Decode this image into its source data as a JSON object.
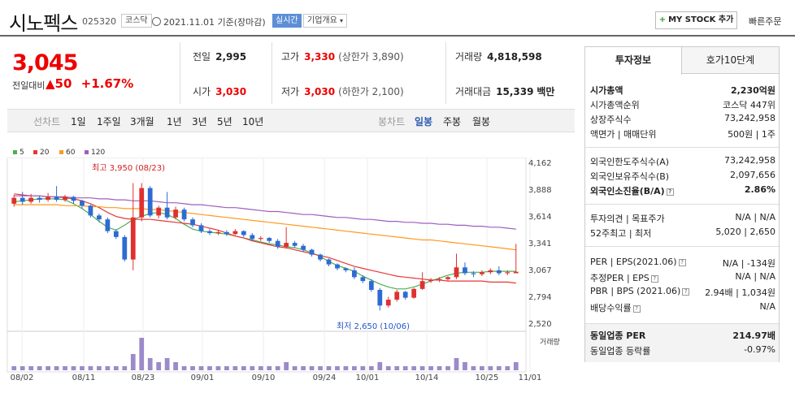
{
  "header": {
    "name": "시노펙스",
    "code": "025320",
    "market": "코스닥",
    "date_text": "2021.11.01 기준(장마감)",
    "realtime": "실시간",
    "company": "기업개요",
    "mystock": "MY STOCK 추가",
    "quick": "빠른주문"
  },
  "quote": {
    "price": "3,045",
    "change_label": "전일대비",
    "change": "▲50",
    "change_pct": "+1.67%"
  },
  "stats": {
    "prev_label": "전일",
    "prev": "2,995",
    "high_label": "고가",
    "high": "3,330",
    "upper_limit": "(상한가 3,890)",
    "volume_label": "거래량",
    "volume": "4,818,598",
    "open_label": "시가",
    "open": "3,030",
    "low_label": "저가",
    "low": "3,030",
    "lower_limit": "(하한가 2,100)",
    "amount_label": "거래대금",
    "amount": "15,339",
    "amount_unit": "백만"
  },
  "toolbar": {
    "line_label": "선차트",
    "periods": [
      "1일",
      "1주일",
      "3개월",
      "1년",
      "3년",
      "5년",
      "10년"
    ],
    "candle_label": "봉차트",
    "candles": [
      "일봉",
      "주봉",
      "월봉"
    ],
    "selected_candle": "일봉"
  },
  "legend": [
    "5",
    "20",
    "60",
    "120"
  ],
  "colors": {
    "ma5": "#4caf50",
    "ma20": "#e53935",
    "ma60": "#ff9a1f",
    "ma120": "#9c5fc0",
    "up": "#e03030",
    "down": "#2d6bd3",
    "volume": "#9c8ac9"
  },
  "annotations": {
    "high": "최고 3,950 (08/23)",
    "low": "최저 2,650 (10/06)",
    "volume_label": "거래량"
  },
  "chart_data": {
    "type": "candlestick",
    "y_ticks": [
      "4,162",
      "3,888",
      "3,614",
      "3,341",
      "3,067",
      "2,794",
      "2,520"
    ],
    "ylim": [
      2520,
      4162
    ],
    "x_ticks": [
      "08/02",
      "08/11",
      "08/23",
      "09/01",
      "09/10",
      "09/24",
      "10/01",
      "10/14",
      "10/25",
      "11/01"
    ],
    "series": [
      {
        "name": "5",
        "values": [
          3760,
          3770,
          3780,
          3790,
          3790,
          3790,
          3780,
          3740,
          3690,
          3630,
          3560,
          3500,
          3470,
          3520,
          3580,
          3610,
          3640,
          3650,
          3630,
          3590,
          3530,
          3480,
          3460,
          3450,
          3440,
          3430,
          3410,
          3390,
          3370,
          3350,
          3330,
          3320,
          3300,
          3290,
          3270,
          3240,
          3200,
          3150,
          3110,
          3080,
          3050,
          3000,
          2960,
          2920,
          2890,
          2870,
          2870,
          2890,
          2920,
          2950,
          2980,
          3010,
          3030,
          3040,
          3040,
          3040,
          3050,
          3050,
          3050,
          3050
        ]
      },
      {
        "name": "20",
        "values": [
          3840,
          3830,
          3820,
          3820,
          3810,
          3810,
          3800,
          3790,
          3770,
          3740,
          3700,
          3650,
          3610,
          3590,
          3580,
          3580,
          3580,
          3570,
          3560,
          3550,
          3540,
          3530,
          3510,
          3490,
          3470,
          3440,
          3410,
          3390,
          3360,
          3340,
          3320,
          3300,
          3290,
          3270,
          3250,
          3230,
          3210,
          3190,
          3160,
          3130,
          3100,
          3080,
          3060,
          3040,
          3020,
          3000,
          2990,
          2980,
          2970,
          2960,
          2960,
          2950,
          2950,
          2950,
          2950,
          2950,
          2940,
          2940,
          2940,
          2930
        ]
      },
      {
        "name": "60",
        "values": [
          3730,
          3730,
          3730,
          3730,
          3730,
          3730,
          3720,
          3720,
          3720,
          3710,
          3710,
          3700,
          3700,
          3690,
          3690,
          3690,
          3680,
          3680,
          3670,
          3660,
          3650,
          3640,
          3630,
          3620,
          3610,
          3600,
          3590,
          3580,
          3570,
          3560,
          3550,
          3540,
          3530,
          3520,
          3510,
          3500,
          3490,
          3480,
          3470,
          3460,
          3450,
          3440,
          3430,
          3420,
          3410,
          3400,
          3390,
          3380,
          3370,
          3370,
          3360,
          3350,
          3340,
          3330,
          3320,
          3310,
          3300,
          3290,
          3280,
          3270
        ]
      },
      {
        "name": "120",
        "values": [
          3820,
          3820,
          3820,
          3820,
          3810,
          3810,
          3810,
          3800,
          3800,
          3800,
          3790,
          3790,
          3780,
          3780,
          3770,
          3770,
          3770,
          3760,
          3750,
          3750,
          3740,
          3730,
          3730,
          3720,
          3710,
          3700,
          3700,
          3690,
          3680,
          3670,
          3660,
          3660,
          3650,
          3640,
          3630,
          3630,
          3620,
          3610,
          3600,
          3600,
          3590,
          3580,
          3580,
          3570,
          3560,
          3560,
          3550,
          3550,
          3540,
          3540,
          3530,
          3530,
          3520,
          3520,
          3510,
          3510,
          3500,
          3500,
          3490,
          3480
        ]
      }
    ],
    "candles": [
      {
        "o": 3740,
        "c": 3800,
        "h": 3830,
        "l": 3710
      },
      {
        "o": 3800,
        "c": 3760,
        "h": 3860,
        "l": 3730
      },
      {
        "o": 3760,
        "c": 3800,
        "h": 3840,
        "l": 3740
      },
      {
        "o": 3800,
        "c": 3780,
        "h": 3820,
        "l": 3750
      },
      {
        "o": 3780,
        "c": 3810,
        "h": 3850,
        "l": 3760
      },
      {
        "o": 3810,
        "c": 3780,
        "h": 3920,
        "l": 3760
      },
      {
        "o": 3780,
        "c": 3810,
        "h": 3830,
        "l": 3760
      },
      {
        "o": 3810,
        "c": 3770,
        "h": 3820,
        "l": 3740
      },
      {
        "o": 3770,
        "c": 3720,
        "h": 3780,
        "l": 3690
      },
      {
        "o": 3720,
        "c": 3620,
        "h": 3730,
        "l": 3600
      },
      {
        "o": 3620,
        "c": 3580,
        "h": 3640,
        "l": 3550
      },
      {
        "o": 3580,
        "c": 3460,
        "h": 3600,
        "l": 3440
      },
      {
        "o": 3460,
        "c": 3400,
        "h": 3480,
        "l": 3380
      },
      {
        "o": 3400,
        "c": 3170,
        "h": 3420,
        "l": 3150
      },
      {
        "o": 3170,
        "c": 3600,
        "h": 3950,
        "l": 3060
      },
      {
        "o": 3600,
        "c": 3900,
        "h": 3950,
        "l": 3560
      },
      {
        "o": 3900,
        "c": 3620,
        "h": 3920,
        "l": 3600
      },
      {
        "o": 3620,
        "c": 3700,
        "h": 3720,
        "l": 3590
      },
      {
        "o": 3700,
        "c": 3600,
        "h": 3860,
        "l": 3580
      },
      {
        "o": 3600,
        "c": 3680,
        "h": 3710,
        "l": 3580
      },
      {
        "o": 3680,
        "c": 3580,
        "h": 3700,
        "l": 3560
      },
      {
        "o": 3580,
        "c": 3520,
        "h": 3600,
        "l": 3500
      },
      {
        "o": 3520,
        "c": 3460,
        "h": 3540,
        "l": 3440
      },
      {
        "o": 3460,
        "c": 3440,
        "h": 3480,
        "l": 3420
      },
      {
        "o": 3440,
        "c": 3450,
        "h": 3470,
        "l": 3420
      },
      {
        "o": 3450,
        "c": 3430,
        "h": 3470,
        "l": 3410
      },
      {
        "o": 3430,
        "c": 3460,
        "h": 3480,
        "l": 3420
      },
      {
        "o": 3460,
        "c": 3420,
        "h": 3470,
        "l": 3400
      },
      {
        "o": 3420,
        "c": 3380,
        "h": 3440,
        "l": 3360
      },
      {
        "o": 3380,
        "c": 3390,
        "h": 3410,
        "l": 3360
      },
      {
        "o": 3390,
        "c": 3360,
        "h": 3400,
        "l": 3340
      },
      {
        "o": 3360,
        "c": 3300,
        "h": 3380,
        "l": 3280
      },
      {
        "o": 3300,
        "c": 3340,
        "h": 3500,
        "l": 3280
      },
      {
        "o": 3340,
        "c": 3310,
        "h": 3360,
        "l": 3290
      },
      {
        "o": 3310,
        "c": 3270,
        "h": 3330,
        "l": 3250
      },
      {
        "o": 3270,
        "c": 3220,
        "h": 3280,
        "l": 3200
      },
      {
        "o": 3220,
        "c": 3170,
        "h": 3230,
        "l": 3150
      },
      {
        "o": 3170,
        "c": 3120,
        "h": 3180,
        "l": 3100
      },
      {
        "o": 3120,
        "c": 3080,
        "h": 3130,
        "l": 3060
      },
      {
        "o": 3080,
        "c": 3060,
        "h": 3090,
        "l": 3040
      },
      {
        "o": 3060,
        "c": 2990,
        "h": 3090,
        "l": 2970
      },
      {
        "o": 2990,
        "c": 2950,
        "h": 3010,
        "l": 2930
      },
      {
        "o": 2950,
        "c": 2860,
        "h": 2970,
        "l": 2840
      },
      {
        "o": 2860,
        "c": 2700,
        "h": 2880,
        "l": 2650
      },
      {
        "o": 2700,
        "c": 2760,
        "h": 2790,
        "l": 2680
      },
      {
        "o": 2760,
        "c": 2840,
        "h": 2860,
        "l": 2740
      },
      {
        "o": 2840,
        "c": 2780,
        "h": 2850,
        "l": 2760
      },
      {
        "o": 2780,
        "c": 2870,
        "h": 2880,
        "l": 2770
      },
      {
        "o": 2870,
        "c": 2950,
        "h": 3040,
        "l": 2860
      },
      {
        "o": 2950,
        "c": 2960,
        "h": 2980,
        "l": 2930
      },
      {
        "o": 2960,
        "c": 2970,
        "h": 2990,
        "l": 2940
      },
      {
        "o": 2970,
        "c": 2990,
        "h": 3000,
        "l": 2950
      },
      {
        "o": 2990,
        "c": 3090,
        "h": 3230,
        "l": 2970
      },
      {
        "o": 3090,
        "c": 3030,
        "h": 3140,
        "l": 3010
      },
      {
        "o": 3030,
        "c": 3020,
        "h": 3050,
        "l": 2990
      },
      {
        "o": 3020,
        "c": 3040,
        "h": 3060,
        "l": 3000
      },
      {
        "o": 3040,
        "c": 3060,
        "h": 3080,
        "l": 3020
      },
      {
        "o": 3060,
        "c": 3030,
        "h": 3100,
        "l": 3010
      },
      {
        "o": 3030,
        "c": 3040,
        "h": 3060,
        "l": 3010
      },
      {
        "o": 3030,
        "c": 3045,
        "h": 3330,
        "l": 3030
      }
    ],
    "volume": [
      1,
      1,
      1,
      1,
      1,
      1,
      1,
      1,
      1,
      1,
      1,
      1,
      1,
      1,
      4,
      8,
      3,
      2,
      3,
      2,
      1,
      1,
      1,
      1,
      1,
      1,
      1,
      1,
      1,
      1,
      1,
      1,
      2,
      1,
      1,
      1,
      1,
      1,
      1,
      1,
      1,
      1,
      1,
      2,
      1,
      1,
      1,
      1,
      1,
      1,
      1,
      1,
      3,
      2,
      1,
      1,
      1,
      1,
      1,
      2
    ]
  },
  "invest": {
    "tabs": [
      "투자정보",
      "호가10단계"
    ],
    "rows": [
      {
        "k": "시가총액",
        "v": "2,230억원",
        "bold": true
      },
      {
        "k": "시가총액순위",
        "v": "코스닥 447위"
      },
      {
        "k": "상장주식수",
        "v": "73,242,958"
      },
      {
        "k": "액면가 | 매매단위",
        "v": "500원 | 1주"
      },
      {
        "k": "외국인한도주식수(A)",
        "v": "73,242,958"
      },
      {
        "k": "외국인보유주식수(B)",
        "v": "2,097,656"
      },
      {
        "k": "외국인소진율(B/A)",
        "v": "2.86%",
        "bold": true
      },
      {
        "k": "투자의견 | 목표주가",
        "v": "N/A | N/A"
      },
      {
        "k": "52주최고 | 최저",
        "v": "5,020 | 2,650"
      },
      {
        "k": "PER | EPS(2021.06)",
        "v": "N/A | -134원"
      },
      {
        "k": "추정PER | EPS",
        "v": "N/A | N/A"
      },
      {
        "k": "PBR | BPS (2021.06)",
        "v": "2.94배 | 1,034원"
      },
      {
        "k": "배당수익률",
        "v": "N/A"
      },
      {
        "k": "동일업종 PER",
        "v": "214.97배",
        "bold": true
      },
      {
        "k": "동일업종 등락률",
        "v": "-0.97%"
      }
    ]
  }
}
